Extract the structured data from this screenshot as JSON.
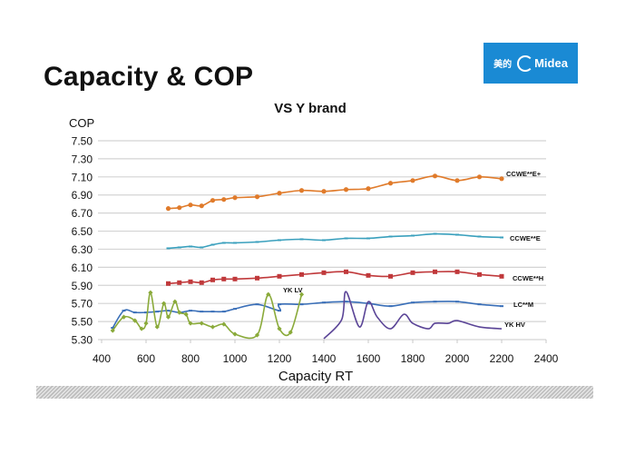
{
  "slide": {
    "title": "Capacity & COP",
    "logo": {
      "cn_text": "美的",
      "brand": "Midea",
      "color": "#1a8ad4"
    }
  },
  "chart_data": {
    "type": "line",
    "title": "VS Y brand",
    "xlabel": "Capacity RT",
    "ylabel": "COP",
    "xlim": [
      400,
      2400
    ],
    "ylim": [
      5.3,
      7.5
    ],
    "x_ticks": [
      "400",
      "600",
      "800",
      "1000",
      "1200",
      "1400",
      "1600",
      "1800",
      "2000",
      "2200",
      "2400"
    ],
    "y_ticks": [
      "7.50",
      "7.30",
      "7.10",
      "6.90",
      "6.70",
      "6.50",
      "6.30",
      "6.10",
      "5.90",
      "5.70",
      "5.50",
      "5.30"
    ],
    "grid": "horizontal",
    "legend": "inline-right",
    "series": [
      {
        "name": "CCWE**E+",
        "color": "#e07b2b",
        "marker": "circle",
        "x": [
          700,
          750,
          800,
          850,
          900,
          950,
          1000,
          1100,
          1200,
          1300,
          1400,
          1500,
          1600,
          1700,
          1800,
          1900,
          2000,
          2100,
          2200
        ],
        "y": [
          6.75,
          6.76,
          6.79,
          6.78,
          6.84,
          6.85,
          6.87,
          6.88,
          6.92,
          6.95,
          6.94,
          6.96,
          6.97,
          7.03,
          7.06,
          7.11,
          7.06,
          7.1,
          7.08
        ]
      },
      {
        "name": "CCWE**E",
        "color": "#3aa0bd",
        "marker": "dash",
        "x": [
          700,
          750,
          800,
          850,
          900,
          950,
          1000,
          1100,
          1200,
          1300,
          1400,
          1500,
          1600,
          1700,
          1800,
          1900,
          2000,
          2100,
          2200
        ],
        "y": [
          6.31,
          6.32,
          6.33,
          6.32,
          6.35,
          6.37,
          6.37,
          6.38,
          6.4,
          6.41,
          6.4,
          6.42,
          6.42,
          6.44,
          6.45,
          6.47,
          6.46,
          6.44,
          6.43
        ]
      },
      {
        "name": "CCWE**H",
        "color": "#c0393b",
        "marker": "square",
        "x": [
          700,
          750,
          800,
          850,
          900,
          950,
          1000,
          1100,
          1200,
          1300,
          1400,
          1500,
          1600,
          1700,
          1800,
          1900,
          2000,
          2100,
          2200
        ],
        "y": [
          5.92,
          5.93,
          5.94,
          5.93,
          5.96,
          5.97,
          5.97,
          5.98,
          6.0,
          6.02,
          6.04,
          6.05,
          6.01,
          6.0,
          6.04,
          6.05,
          6.05,
          6.02,
          6.0
        ]
      },
      {
        "name": "LC**M",
        "color": "#3a6fb8",
        "marker": "dash",
        "x": [
          450,
          500,
          550,
          600,
          650,
          700,
          750,
          800,
          850,
          900,
          950,
          1000,
          1100,
          1200,
          1200,
          1300,
          1400,
          1500,
          1600,
          1700,
          1800,
          1900,
          2000,
          2100,
          2200
        ],
        "y": [
          5.43,
          5.62,
          5.6,
          5.6,
          5.61,
          5.62,
          5.6,
          5.62,
          5.61,
          5.61,
          5.61,
          5.64,
          5.69,
          5.62,
          5.69,
          5.69,
          5.71,
          5.72,
          5.7,
          5.67,
          5.71,
          5.72,
          5.72,
          5.69,
          5.67
        ]
      },
      {
        "name": "YK LV",
        "color": "#8aaa3a",
        "marker": "diamond",
        "x": [
          450,
          500,
          550,
          580,
          600,
          620,
          650,
          680,
          700,
          730,
          750,
          780,
          800,
          850,
          900,
          950,
          1000,
          1100,
          1150,
          1200,
          1250,
          1300
        ],
        "y": [
          5.4,
          5.55,
          5.51,
          5.42,
          5.48,
          5.82,
          5.44,
          5.7,
          5.55,
          5.72,
          5.6,
          5.58,
          5.48,
          5.48,
          5.44,
          5.47,
          5.36,
          5.35,
          5.8,
          5.42,
          5.38,
          5.8
        ]
      },
      {
        "name": "YK HV",
        "color": "#5b4597",
        "marker": "none",
        "x": [
          1400,
          1480,
          1500,
          1560,
          1600,
          1640,
          1700,
          1760,
          1800,
          1870,
          1900,
          1960,
          2000,
          2100,
          2200
        ],
        "y": [
          5.31,
          5.52,
          5.83,
          5.44,
          5.72,
          5.55,
          5.42,
          5.58,
          5.48,
          5.42,
          5.48,
          5.48,
          5.51,
          5.44,
          5.42
        ]
      }
    ]
  }
}
